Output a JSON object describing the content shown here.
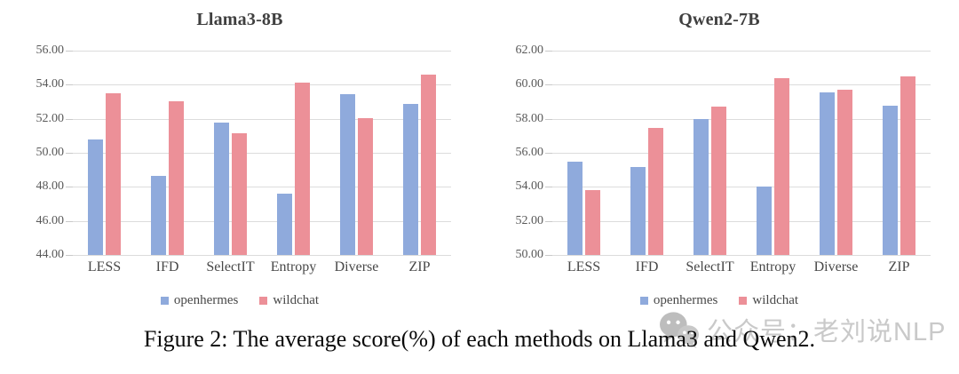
{
  "figure": {
    "caption": "Figure 2: The average score(%) of each methods on Llama3 and Qwen2."
  },
  "watermark": {
    "icon": "wechat-icon",
    "text": "公众号：老刘说NLP"
  },
  "colors": {
    "openhermes": "#8FAADC",
    "wildchat": "#EC9098",
    "gridline": "#DCDCDC",
    "axis_text": "#595959",
    "title_text": "#3F3F3F",
    "caption_text": "#0A0A0A",
    "watermark_text": "#C9C9C9"
  },
  "chart_data": [
    {
      "type": "bar",
      "title": "Llama3-8B",
      "categories": [
        "LESS",
        "IFD",
        "SelectIT",
        "Entropy",
        "Diverse",
        "ZIP"
      ],
      "series": [
        {
          "name": "openhermes",
          "color": "#8FAADC",
          "values": [
            50.8,
            48.65,
            51.75,
            47.6,
            53.45,
            52.85
          ]
        },
        {
          "name": "wildchat",
          "color": "#EC9098",
          "values": [
            53.5,
            53.05,
            51.15,
            54.1,
            52.05,
            54.6
          ]
        }
      ],
      "ylim": [
        44,
        62
      ],
      "ymin": 44,
      "ymax": 56,
      "ytick_step": 2,
      "ytick_labels": [
        "44.00",
        "46.00",
        "48.00",
        "50.00",
        "52.00",
        "54.00",
        "56.00"
      ],
      "xlabel": "",
      "ylabel": "",
      "grid": true,
      "legend_position": "bottom"
    },
    {
      "type": "bar",
      "title": "Qwen2-7B",
      "categories": [
        "LESS",
        "IFD",
        "SelectIT",
        "Entropy",
        "Diverse",
        "ZIP"
      ],
      "series": [
        {
          "name": "openhermes",
          "color": "#8FAADC",
          "values": [
            55.5,
            55.15,
            58.0,
            54.0,
            59.55,
            58.75
          ]
        },
        {
          "name": "wildchat",
          "color": "#EC9098",
          "values": [
            53.8,
            57.45,
            58.7,
            60.4,
            59.7,
            60.5
          ]
        }
      ],
      "ylim": [
        50,
        62
      ],
      "ymin": 50,
      "ymax": 62,
      "ytick_step": 2,
      "ytick_labels": [
        "50.00",
        "52.00",
        "54.00",
        "56.00",
        "58.00",
        "60.00",
        "62.00"
      ],
      "xlabel": "",
      "ylabel": "",
      "grid": true,
      "legend_position": "bottom"
    }
  ]
}
